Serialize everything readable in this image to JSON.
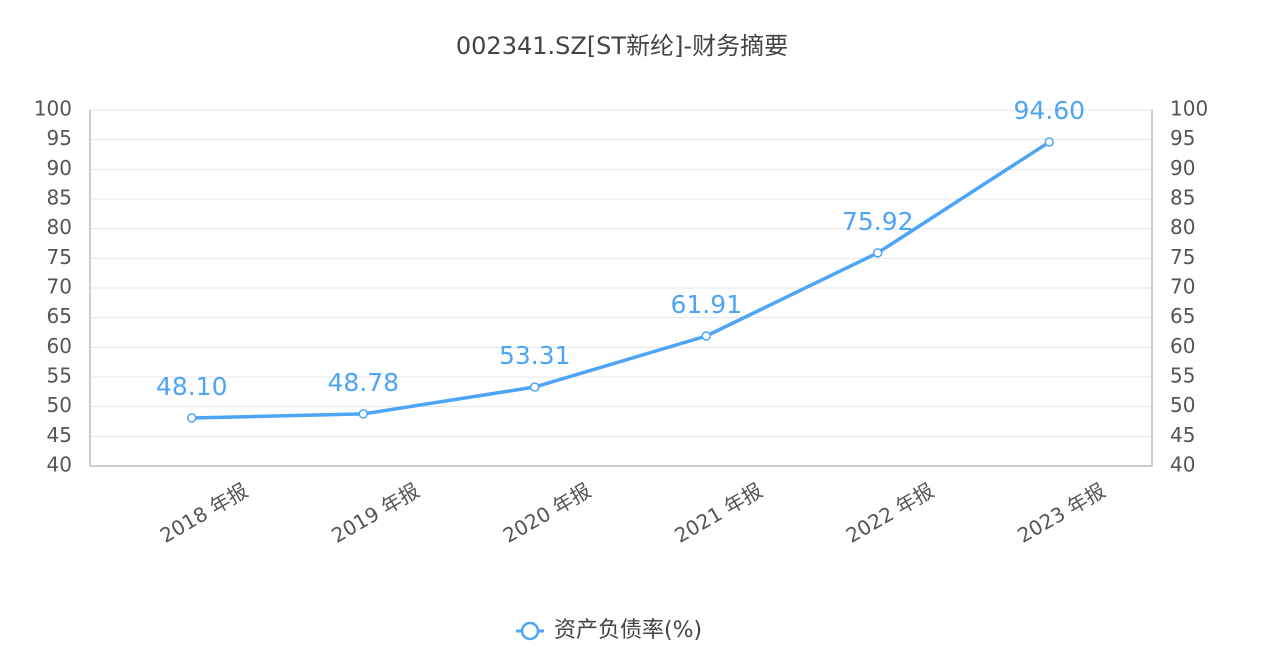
{
  "chart_data": {
    "type": "line",
    "title": "002341.SZ[ST新纶]-财务摘要",
    "categories": [
      "2018 年报",
      "2019 年报",
      "2020 年报",
      "2021 年报",
      "2022 年报",
      "2023 年报"
    ],
    "series": [
      {
        "name": "资产负债率(%)",
        "color": "#4ea5f6",
        "values": [
          48.1,
          48.78,
          53.31,
          61.91,
          75.92,
          94.6
        ],
        "value_labels": [
          "48.10",
          "48.78",
          "53.31",
          "61.91",
          "75.92",
          "94.60"
        ]
      }
    ],
    "ylim": [
      40,
      100
    ],
    "yticks": [
      40,
      45,
      50,
      55,
      60,
      65,
      70,
      75,
      80,
      85,
      90,
      95,
      100
    ],
    "y2lim": [
      40,
      100
    ],
    "y2ticks": [
      40,
      45,
      50,
      55,
      60,
      65,
      70,
      75,
      80,
      85,
      90,
      95,
      100
    ],
    "grid": true,
    "legend": "bottom"
  }
}
